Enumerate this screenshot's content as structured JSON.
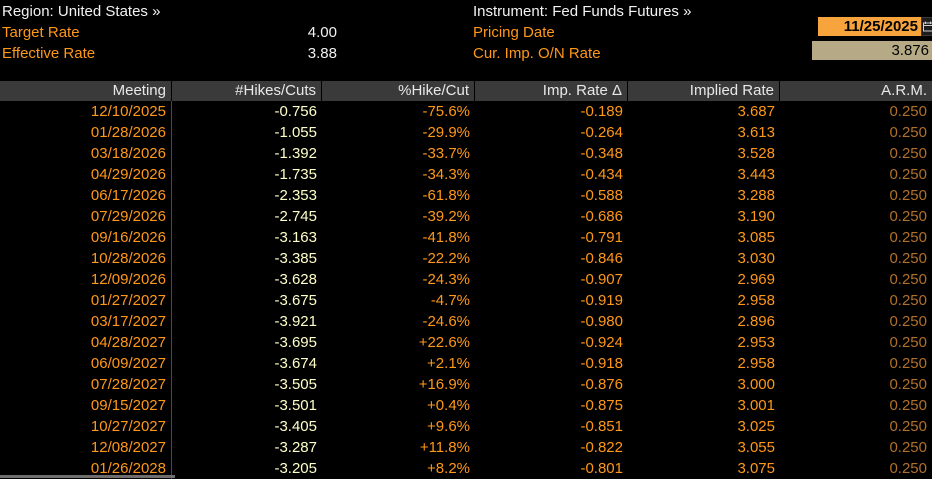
{
  "header": {
    "region_label": "Region: United States »",
    "instrument_label": "Instrument: Fed Funds Futures »",
    "target_rate": {
      "label": "Target Rate",
      "value": "4.00"
    },
    "effective_rate": {
      "label": "Effective Rate",
      "value": "3.88"
    },
    "pricing_date": {
      "label": "Pricing Date",
      "value": "11/25/2025"
    },
    "cur_imp_on_rate": {
      "label": "Cur. Imp. O/N Rate",
      "value": "3.876"
    }
  },
  "table": {
    "columns": [
      "Meeting",
      "#Hikes/Cuts",
      "%Hike/Cut",
      "Imp. Rate Δ",
      "Implied Rate",
      "A.R.M."
    ],
    "column_keys": [
      "meeting",
      "hikes-cuts",
      "pct-hike-cut",
      "imp-rate-delta",
      "implied-rate",
      "arm"
    ],
    "rows": [
      [
        "12/10/2025",
        "-0.756",
        "-75.6%",
        "-0.189",
        "3.687",
        "0.250"
      ],
      [
        "01/28/2026",
        "-1.055",
        "-29.9%",
        "-0.264",
        "3.613",
        "0.250"
      ],
      [
        "03/18/2026",
        "-1.392",
        "-33.7%",
        "-0.348",
        "3.528",
        "0.250"
      ],
      [
        "04/29/2026",
        "-1.735",
        "-34.3%",
        "-0.434",
        "3.443",
        "0.250"
      ],
      [
        "06/17/2026",
        "-2.353",
        "-61.8%",
        "-0.588",
        "3.288",
        "0.250"
      ],
      [
        "07/29/2026",
        "-2.745",
        "-39.2%",
        "-0.686",
        "3.190",
        "0.250"
      ],
      [
        "09/16/2026",
        "-3.163",
        "-41.8%",
        "-0.791",
        "3.085",
        "0.250"
      ],
      [
        "10/28/2026",
        "-3.385",
        "-22.2%",
        "-0.846",
        "3.030",
        "0.250"
      ],
      [
        "12/09/2026",
        "-3.628",
        "-24.3%",
        "-0.907",
        "2.969",
        "0.250"
      ],
      [
        "01/27/2027",
        "-3.675",
        "-4.7%",
        "-0.919",
        "2.958",
        "0.250"
      ],
      [
        "03/17/2027",
        "-3.921",
        "-24.6%",
        "-0.980",
        "2.896",
        "0.250"
      ],
      [
        "04/28/2027",
        "-3.695",
        "+22.6%",
        "-0.924",
        "2.953",
        "0.250"
      ],
      [
        "06/09/2027",
        "-3.674",
        "+2.1%",
        "-0.918",
        "2.958",
        "0.250"
      ],
      [
        "07/28/2027",
        "-3.505",
        "+16.9%",
        "-0.876",
        "3.000",
        "0.250"
      ],
      [
        "09/15/2027",
        "-3.501",
        "+0.4%",
        "-0.875",
        "3.001",
        "0.250"
      ],
      [
        "10/27/2027",
        "-3.405",
        "+9.6%",
        "-0.851",
        "3.025",
        "0.250"
      ],
      [
        "12/08/2027",
        "-3.287",
        "+11.8%",
        "-0.822",
        "3.055",
        "0.250"
      ],
      [
        "01/26/2028",
        "-3.205",
        "+8.2%",
        "-0.801",
        "3.075",
        "0.250"
      ]
    ]
  },
  "icons": {
    "calendar": "calendar-icon"
  },
  "colors": {
    "background": "#000000",
    "accent_orange": "#ff9819",
    "pale_yellow": "#ffffc8",
    "dim_orange_arm": "#b0702a",
    "table_header_bg": "#3a3a3a",
    "date_field_bg": "#f7a43c",
    "rate_field_bg": "#b5aa85",
    "text_white": "#f2f2f2"
  }
}
